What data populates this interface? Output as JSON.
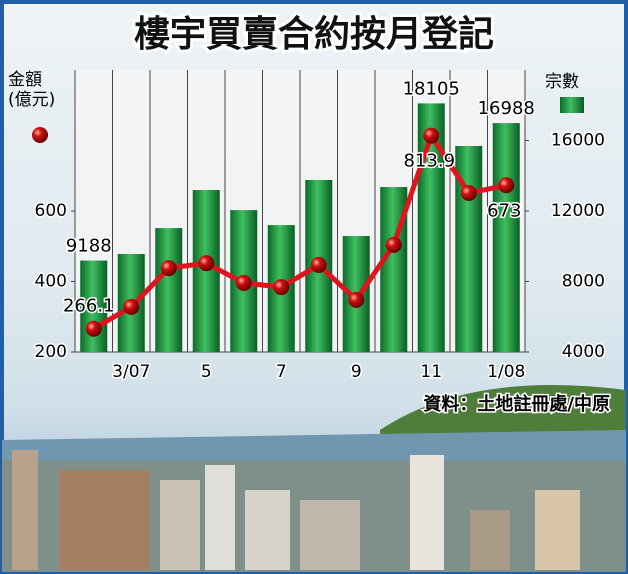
{
  "chart_data": {
    "type": "bar-line",
    "title": "樓宇買賣合約按月登記",
    "source": "資料：土地註冊處/中原",
    "categories": [
      null,
      "3/07",
      null,
      "5",
      null,
      "7",
      null,
      "9",
      null,
      "11",
      null,
      "1/08"
    ],
    "series": [
      {
        "name": "宗數",
        "type": "bar",
        "axis": "y2",
        "color": "#138a3a",
        "values": [
          9188,
          9560,
          11030,
          13190,
          12050,
          11200,
          13760,
          10580,
          13360,
          18105,
          15690,
          16988
        ],
        "value_labels": [
          "9188",
          null,
          null,
          null,
          null,
          null,
          null,
          null,
          null,
          "18105",
          null,
          "16988"
        ]
      },
      {
        "name": "金額(億元)",
        "type": "line",
        "axis": "y",
        "color": "#e0141e",
        "values": [
          266.1,
          328,
          438,
          452,
          396,
          384,
          447,
          348,
          504,
          813.9,
          651,
          673
        ],
        "value_labels": [
          "266.1",
          null,
          null,
          null,
          null,
          null,
          null,
          null,
          null,
          "813.9",
          null,
          "673"
        ]
      }
    ],
    "ylim": [
      200,
      1000
    ],
    "yticks": [
      200,
      400,
      600
    ],
    "y2lim": [
      4000,
      20000
    ],
    "y2ticks": [
      4000,
      8000,
      12000,
      16000
    ]
  }
}
